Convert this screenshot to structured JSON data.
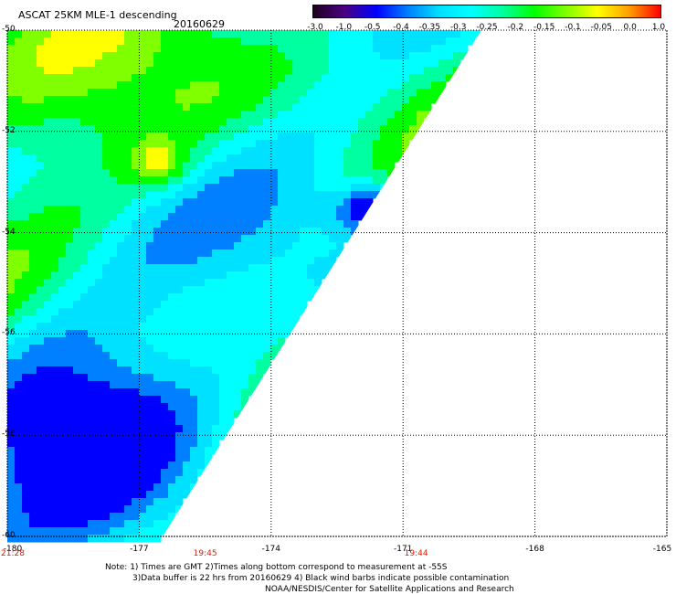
{
  "header": {
    "title": "ASCAT 25KM MLE-1 descending",
    "date": "20160629"
  },
  "colorbar": {
    "labels": [
      "-3.0",
      "-1.0",
      "-0.5",
      "-0.4",
      "-0.35",
      "-0.3",
      "-0.25",
      "-0.2",
      "-0.15",
      "-0.1",
      "-0.05",
      "0.0",
      "1.0"
    ],
    "colors": [
      "#200020",
      "#4b0082",
      "#0000ff",
      "#0080ff",
      "#00e0ff",
      "#00ffff",
      "#00ffa0",
      "#00ff00",
      "#80ff00",
      "#ffff00",
      "#ffa000",
      "#ff0000"
    ]
  },
  "map": {
    "lat_labels": [
      "-50",
      "-52",
      "-54",
      "-56",
      "-58",
      "-60"
    ],
    "lon_labels": [
      "-180",
      "-177",
      "-174",
      "-171",
      "-168",
      "-165"
    ],
    "lat_range": [
      -60,
      -50
    ],
    "lon_range": [
      -180,
      -165
    ],
    "time_labels": [
      {
        "text": "21:28",
        "lon": -180
      },
      {
        "text": "19:45",
        "lon": -175.5
      },
      {
        "text": "19:44",
        "lon": -170.7
      }
    ]
  },
  "notes": {
    "line1": "Note: 1) Times are GMT 2)Times along bottom correspond to measurement at -55S",
    "line2": "3)Data buffer is 22 hrs from 20160629 4) Black wind barbs indicate possible contamination",
    "line3": "NOAA/NESDIS/Center for Satellite Applications and Research"
  }
}
